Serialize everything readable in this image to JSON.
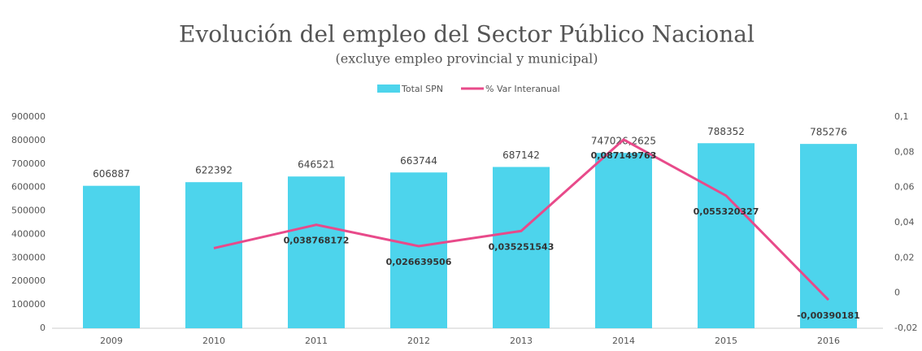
{
  "chart_data": {
    "type": "bar_line",
    "title": "Evolución del empleo del Sector Público Nacional",
    "subtitle": "(excluye empleo provincial y municipal)",
    "categories": [
      "2009",
      "2010",
      "2011",
      "2012",
      "2013",
      "2014",
      "2015",
      "2016"
    ],
    "series": [
      {
        "name": "Total SPN",
        "type": "bar",
        "color": "#4dd4ec",
        "values": [
          606887,
          622392,
          646521,
          663744,
          687142,
          747026.2625,
          788352,
          785276
        ],
        "value_labels": [
          "606887",
          "622392",
          "646521",
          "663744",
          "687142",
          "747026,2625",
          "788352",
          "785276"
        ]
      },
      {
        "name": "% Var Interanual",
        "type": "line",
        "color": "#e84a8a",
        "axis": "y2",
        "values": [
          null,
          0.0255,
          0.038768172,
          0.026639506,
          0.035251543,
          0.087149763,
          0.055320327,
          -0.00390181
        ],
        "value_labels": [
          null,
          null,
          "0,038768172",
          "0,026639506",
          "0,035251543",
          "0,087149763",
          "0,055320327",
          "-0,00390181"
        ]
      }
    ],
    "ylim": [
      0,
      900000
    ],
    "yticks": [
      0,
      100000,
      200000,
      300000,
      400000,
      500000,
      600000,
      700000,
      800000,
      900000
    ],
    "y2lim": [
      -0.02,
      0.1
    ],
    "y2ticks": [
      {
        "value": -0.02,
        "label": "-0,02"
      },
      0,
      {
        "value": 0.02,
        "label": "0,02"
      },
      {
        "value": 0.04,
        "label": "0,04"
      },
      {
        "value": 0.06,
        "label": "0,06"
      },
      {
        "value": 0.08,
        "label": "0,08"
      },
      {
        "value": 0.1,
        "label": "0,1"
      }
    ],
    "legend": "top"
  }
}
